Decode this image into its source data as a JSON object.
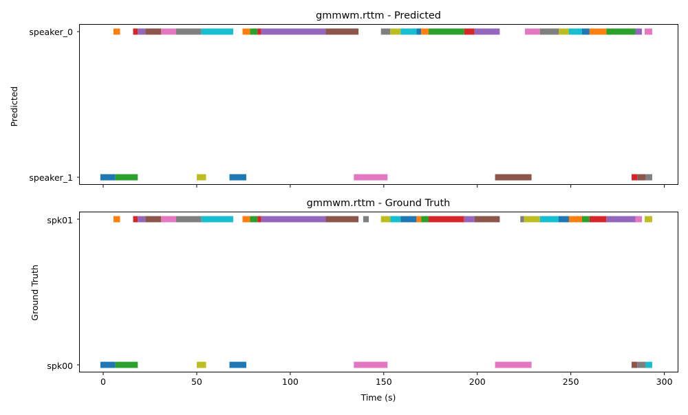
{
  "colors": [
    "#1f77b4",
    "#ff7f0e",
    "#2ca02c",
    "#d62728",
    "#9467bd",
    "#8c564b",
    "#e377c2",
    "#7f7f7f",
    "#bcbd22",
    "#17becf"
  ],
  "chart_data": [
    {
      "type": "timeline",
      "title": "gmmwm.rttm - Predicted",
      "ylabel": "Predicted",
      "xlabel": "",
      "xlim": [
        -12.5,
        307.5
      ],
      "xticks": [
        0,
        50,
        100,
        150,
        200,
        250,
        300
      ],
      "show_tick_labels": false,
      "rows": [
        "speaker_0",
        "speaker_1"
      ],
      "segments": [
        {
          "row": 0,
          "start": 5.5,
          "end": 9.0,
          "color": "#ff7f0e"
        },
        {
          "row": 0,
          "start": 16.0,
          "end": 18.5,
          "color": "#d62728"
        },
        {
          "row": 0,
          "start": 18.5,
          "end": 22.5,
          "color": "#9467bd"
        },
        {
          "row": 0,
          "start": 22.5,
          "end": 31.0,
          "color": "#8c564b"
        },
        {
          "row": 0,
          "start": 31.0,
          "end": 39.0,
          "color": "#e377c2"
        },
        {
          "row": 0,
          "start": 39.0,
          "end": 52.5,
          "color": "#7f7f7f"
        },
        {
          "row": 0,
          "start": 52.5,
          "end": 69.5,
          "color": "#17becf"
        },
        {
          "row": 0,
          "start": 74.5,
          "end": 78.5,
          "color": "#ff7f0e"
        },
        {
          "row": 0,
          "start": 78.5,
          "end": 82.5,
          "color": "#2ca02c"
        },
        {
          "row": 0,
          "start": 82.5,
          "end": 84.5,
          "color": "#d62728"
        },
        {
          "row": 0,
          "start": 84.5,
          "end": 119.0,
          "color": "#9467bd"
        },
        {
          "row": 0,
          "start": 119.0,
          "end": 136.5,
          "color": "#8c564b"
        },
        {
          "row": 0,
          "start": 148.5,
          "end": 153.5,
          "color": "#7f7f7f"
        },
        {
          "row": 0,
          "start": 153.5,
          "end": 159.0,
          "color": "#bcbd22"
        },
        {
          "row": 0,
          "start": 159.0,
          "end": 167.5,
          "color": "#17becf"
        },
        {
          "row": 0,
          "start": 167.5,
          "end": 170.0,
          "color": "#1f77b4"
        },
        {
          "row": 0,
          "start": 170.0,
          "end": 174.0,
          "color": "#ff7f0e"
        },
        {
          "row": 0,
          "start": 174.0,
          "end": 193.0,
          "color": "#2ca02c"
        },
        {
          "row": 0,
          "start": 193.0,
          "end": 198.5,
          "color": "#d62728"
        },
        {
          "row": 0,
          "start": 198.5,
          "end": 212.0,
          "color": "#9467bd"
        },
        {
          "row": 0,
          "start": 225.5,
          "end": 233.5,
          "color": "#e377c2"
        },
        {
          "row": 0,
          "start": 233.5,
          "end": 243.5,
          "color": "#7f7f7f"
        },
        {
          "row": 0,
          "start": 243.5,
          "end": 249.0,
          "color": "#bcbd22"
        },
        {
          "row": 0,
          "start": 249.0,
          "end": 256.0,
          "color": "#17becf"
        },
        {
          "row": 0,
          "start": 256.0,
          "end": 260.0,
          "color": "#1f77b4"
        },
        {
          "row": 0,
          "start": 260.0,
          "end": 269.0,
          "color": "#ff7f0e"
        },
        {
          "row": 0,
          "start": 269.0,
          "end": 284.5,
          "color": "#2ca02c"
        },
        {
          "row": 0,
          "start": 284.5,
          "end": 288.0,
          "color": "#9467bd"
        },
        {
          "row": 0,
          "start": 289.5,
          "end": 293.5,
          "color": "#e377c2"
        },
        {
          "row": 1,
          "start": -1.5,
          "end": 6.5,
          "color": "#1f77b4"
        },
        {
          "row": 1,
          "start": 6.5,
          "end": 18.5,
          "color": "#2ca02c"
        },
        {
          "row": 1,
          "start": 50.0,
          "end": 55.0,
          "color": "#bcbd22"
        },
        {
          "row": 1,
          "start": 67.5,
          "end": 76.5,
          "color": "#1f77b4"
        },
        {
          "row": 1,
          "start": 134.0,
          "end": 152.0,
          "color": "#e377c2"
        },
        {
          "row": 1,
          "start": 209.5,
          "end": 229.0,
          "color": "#8c564b"
        },
        {
          "row": 1,
          "start": 282.5,
          "end": 285.5,
          "color": "#d62728"
        },
        {
          "row": 1,
          "start": 285.5,
          "end": 290.0,
          "color": "#8c564b"
        },
        {
          "row": 1,
          "start": 290.0,
          "end": 293.5,
          "color": "#7f7f7f"
        }
      ]
    },
    {
      "type": "timeline",
      "title": "gmmwm.rttm - Ground Truth",
      "ylabel": "Ground Truth",
      "xlabel": "Time (s)",
      "xlim": [
        -12.5,
        307.5
      ],
      "xticks": [
        0,
        50,
        100,
        150,
        200,
        250,
        300
      ],
      "show_tick_labels": true,
      "rows": [
        "spk01",
        "spk00"
      ],
      "segments": [
        {
          "row": 0,
          "start": 5.5,
          "end": 9.0,
          "color": "#ff7f0e"
        },
        {
          "row": 0,
          "start": 16.0,
          "end": 18.5,
          "color": "#d62728"
        },
        {
          "row": 0,
          "start": 18.5,
          "end": 22.5,
          "color": "#9467bd"
        },
        {
          "row": 0,
          "start": 22.5,
          "end": 31.0,
          "color": "#8c564b"
        },
        {
          "row": 0,
          "start": 31.0,
          "end": 39.0,
          "color": "#e377c2"
        },
        {
          "row": 0,
          "start": 39.0,
          "end": 52.5,
          "color": "#7f7f7f"
        },
        {
          "row": 0,
          "start": 52.5,
          "end": 69.5,
          "color": "#17becf"
        },
        {
          "row": 0,
          "start": 74.5,
          "end": 78.5,
          "color": "#ff7f0e"
        },
        {
          "row": 0,
          "start": 78.5,
          "end": 82.5,
          "color": "#2ca02c"
        },
        {
          "row": 0,
          "start": 82.5,
          "end": 84.5,
          "color": "#d62728"
        },
        {
          "row": 0,
          "start": 84.5,
          "end": 119.0,
          "color": "#9467bd"
        },
        {
          "row": 0,
          "start": 119.0,
          "end": 136.5,
          "color": "#8c564b"
        },
        {
          "row": 0,
          "start": 139.0,
          "end": 142.0,
          "color": "#7f7f7f"
        },
        {
          "row": 0,
          "start": 148.5,
          "end": 153.5,
          "color": "#bcbd22"
        },
        {
          "row": 0,
          "start": 153.5,
          "end": 159.0,
          "color": "#17becf"
        },
        {
          "row": 0,
          "start": 159.0,
          "end": 167.5,
          "color": "#1f77b4"
        },
        {
          "row": 0,
          "start": 167.5,
          "end": 170.0,
          "color": "#ff7f0e"
        },
        {
          "row": 0,
          "start": 170.0,
          "end": 174.0,
          "color": "#2ca02c"
        },
        {
          "row": 0,
          "start": 174.0,
          "end": 193.0,
          "color": "#d62728"
        },
        {
          "row": 0,
          "start": 193.0,
          "end": 198.5,
          "color": "#9467bd"
        },
        {
          "row": 0,
          "start": 198.5,
          "end": 212.0,
          "color": "#8c564b"
        },
        {
          "row": 0,
          "start": 223.0,
          "end": 225.0,
          "color": "#7f7f7f"
        },
        {
          "row": 0,
          "start": 225.0,
          "end": 233.5,
          "color": "#bcbd22"
        },
        {
          "row": 0,
          "start": 233.5,
          "end": 243.5,
          "color": "#17becf"
        },
        {
          "row": 0,
          "start": 243.5,
          "end": 249.0,
          "color": "#1f77b4"
        },
        {
          "row": 0,
          "start": 249.0,
          "end": 256.0,
          "color": "#ff7f0e"
        },
        {
          "row": 0,
          "start": 256.0,
          "end": 260.0,
          "color": "#2ca02c"
        },
        {
          "row": 0,
          "start": 260.0,
          "end": 269.0,
          "color": "#d62728"
        },
        {
          "row": 0,
          "start": 269.0,
          "end": 284.5,
          "color": "#9467bd"
        },
        {
          "row": 0,
          "start": 284.5,
          "end": 288.0,
          "color": "#e377c2"
        },
        {
          "row": 0,
          "start": 289.5,
          "end": 293.5,
          "color": "#bcbd22"
        },
        {
          "row": 1,
          "start": -1.5,
          "end": 6.5,
          "color": "#1f77b4"
        },
        {
          "row": 1,
          "start": 6.5,
          "end": 18.5,
          "color": "#2ca02c"
        },
        {
          "row": 1,
          "start": 50.0,
          "end": 55.0,
          "color": "#bcbd22"
        },
        {
          "row": 1,
          "start": 67.5,
          "end": 76.5,
          "color": "#1f77b4"
        },
        {
          "row": 1,
          "start": 134.0,
          "end": 152.0,
          "color": "#e377c2"
        },
        {
          "row": 1,
          "start": 209.5,
          "end": 229.0,
          "color": "#e377c2"
        },
        {
          "row": 1,
          "start": 282.5,
          "end": 285.5,
          "color": "#8c564b"
        },
        {
          "row": 1,
          "start": 285.5,
          "end": 290.0,
          "color": "#7f7f7f"
        },
        {
          "row": 1,
          "start": 290.0,
          "end": 293.5,
          "color": "#17becf"
        }
      ]
    }
  ]
}
